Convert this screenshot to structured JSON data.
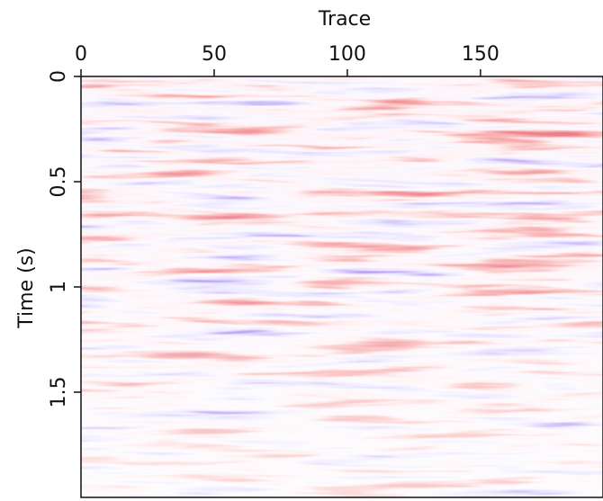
{
  "chart_data": {
    "type": "image",
    "xlabel": "Trace",
    "ylabel": "Time (s)",
    "xlim": [
      0,
      196
    ],
    "xticks": [
      0,
      50,
      100,
      150
    ],
    "ylim": [
      0,
      2
    ],
    "yticks": [
      0,
      0.5,
      1,
      1.5
    ]
  }
}
